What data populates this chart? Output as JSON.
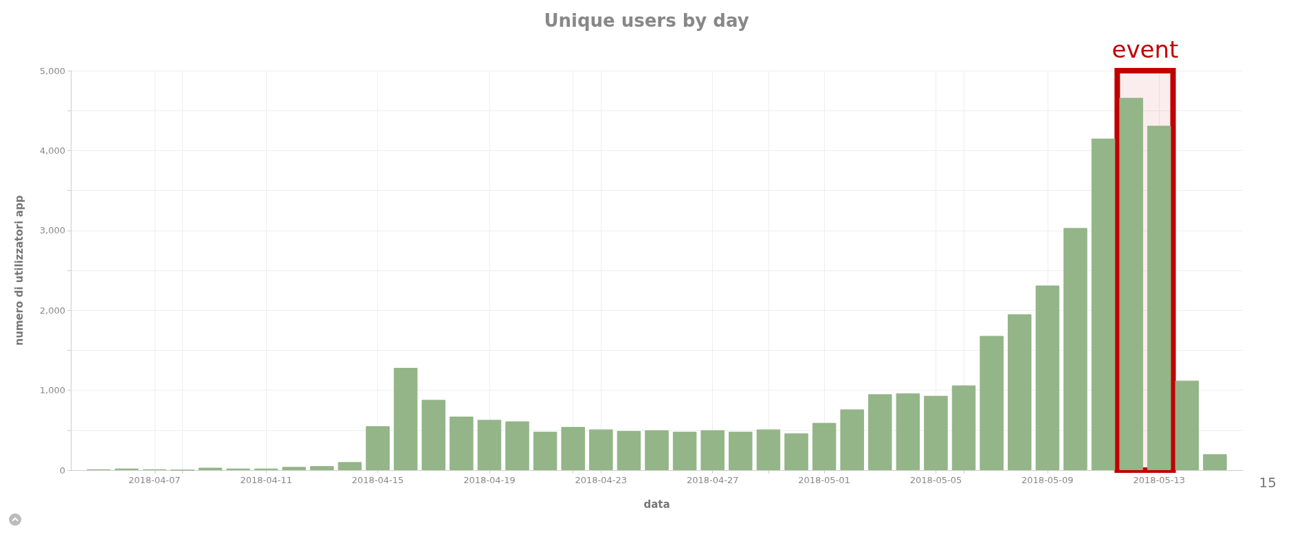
{
  "chart_data": {
    "type": "bar",
    "title": "Unique users by day",
    "xlabel": "data",
    "ylabel": "numero di utilizzatori app",
    "x": [
      "2018-04-05",
      "2018-04-06",
      "2018-04-07",
      "2018-04-08",
      "2018-04-09",
      "2018-04-10",
      "2018-04-11",
      "2018-04-12",
      "2018-04-13",
      "2018-04-14",
      "2018-04-15",
      "2018-04-16",
      "2018-04-17",
      "2018-04-18",
      "2018-04-19",
      "2018-04-20",
      "2018-04-21",
      "2018-04-22",
      "2018-04-23",
      "2018-04-24",
      "2018-04-25",
      "2018-04-26",
      "2018-04-27",
      "2018-04-28",
      "2018-04-29",
      "2018-04-30",
      "2018-05-01",
      "2018-05-02",
      "2018-05-03",
      "2018-05-04",
      "2018-05-05",
      "2018-05-06",
      "2018-05-07",
      "2018-05-08",
      "2018-05-09",
      "2018-05-10",
      "2018-05-11",
      "2018-05-12",
      "2018-05-13",
      "2018-05-14",
      "2018-05-15"
    ],
    "values": [
      10,
      20,
      10,
      0,
      30,
      20,
      20,
      40,
      50,
      100,
      550,
      1280,
      880,
      670,
      630,
      610,
      480,
      540,
      510,
      490,
      500,
      480,
      500,
      480,
      510,
      460,
      590,
      760,
      950,
      960,
      930,
      1060,
      1680,
      1950,
      2310,
      3030,
      4150,
      4660,
      4310,
      1120,
      200
    ],
    "color": "#93b587",
    "xlim": [
      "2018-04-04",
      "2018-05-16"
    ],
    "xticks": [
      "2018-04-07",
      {
        "value": "2018-04-08",
        "label": null
      },
      "2018-04-11",
      "2018-04-15",
      "2018-04-19",
      {
        "value": "2018-04-22",
        "label": null
      },
      "2018-04-23",
      "2018-04-27",
      {
        "value": "2018-04-29",
        "label": null
      },
      "2018-05-01",
      "2018-05-05",
      {
        "value": "2018-05-06",
        "label": null
      },
      "2018-05-09",
      "2018-05-13"
    ],
    "ylim": [
      0,
      5000
    ],
    "yticks": [
      0,
      {
        "value": 500,
        "label": null
      },
      {
        "value": 1000,
        "label": "1,000"
      },
      {
        "value": 1500,
        "label": null
      },
      {
        "value": 2000,
        "label": "2,000"
      },
      {
        "value": 2500,
        "label": null
      },
      {
        "value": 3000,
        "label": "3,000"
      },
      {
        "value": 3500,
        "label": null
      },
      {
        "value": 4000,
        "label": "4,000"
      },
      {
        "value": 4500,
        "label": null
      },
      {
        "value": 5000,
        "label": "5,000"
      }
    ],
    "grid": true,
    "bands": [
      {
        "axis": "x",
        "from": "2018-05-11T12:00",
        "to": "2018-05-13T12:00",
        "label": "event",
        "color": "#c00000"
      }
    ],
    "annotations": [
      "15"
    ]
  }
}
